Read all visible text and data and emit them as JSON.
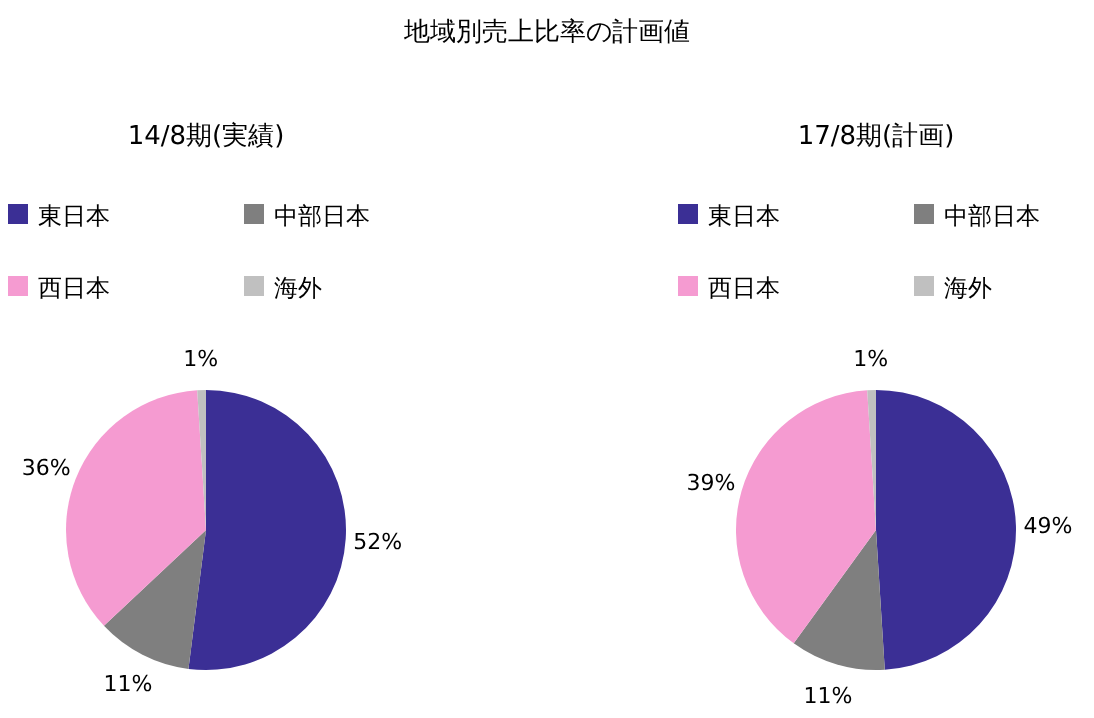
{
  "chart_data": [
    {
      "type": "pie",
      "title": "地域別売上比率の計画値",
      "subtitle": "14/8期(実績)",
      "categories": [
        "東日本",
        "中部日本",
        "西日本",
        "海外"
      ],
      "values": [
        52,
        11,
        36,
        1
      ],
      "value_labels": [
        "52%",
        "11%",
        "36%",
        "1%"
      ],
      "colors": [
        "#3b2f95",
        "#7f7f7f",
        "#f59bd1",
        "#c0c0c0"
      ],
      "legend": "top"
    },
    {
      "type": "pie",
      "subtitle": "17/8期(計画)",
      "categories": [
        "東日本",
        "中部日本",
        "西日本",
        "海外"
      ],
      "values": [
        49,
        11,
        39,
        1
      ],
      "value_labels": [
        "49%",
        "11%",
        "39%",
        "1%"
      ],
      "colors": [
        "#3b2f95",
        "#7f7f7f",
        "#f59bd1",
        "#c0c0c0"
      ],
      "legend": "top"
    }
  ]
}
